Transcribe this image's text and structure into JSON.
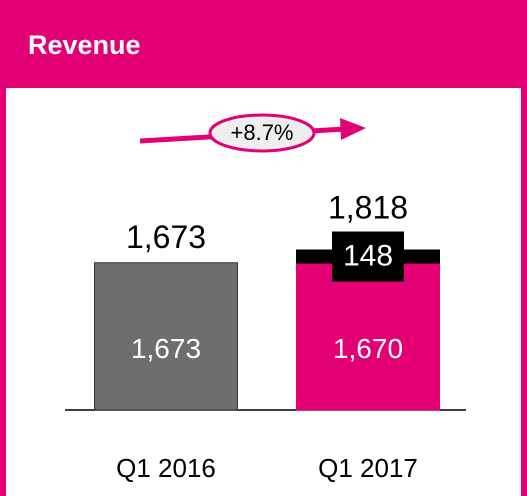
{
  "chart_data": {
    "type": "stacked-bar",
    "title": "Revenue",
    "annotation": "+8.7%",
    "categories": [
      "Q1 2016",
      "Q1 2017"
    ],
    "series": [
      {
        "colors": [
          "#6e6e6e",
          "#e20074"
        ],
        "values": [
          1673,
          1670
        ],
        "value_labels": [
          "1,673",
          "1,670"
        ]
      },
      {
        "color": "#000000",
        "values": [
          null,
          148
        ],
        "value_labels": [
          null,
          "148"
        ]
      }
    ],
    "totals": [
      1673,
      1818
    ],
    "total_labels": [
      "1,673",
      "1,818"
    ]
  }
}
